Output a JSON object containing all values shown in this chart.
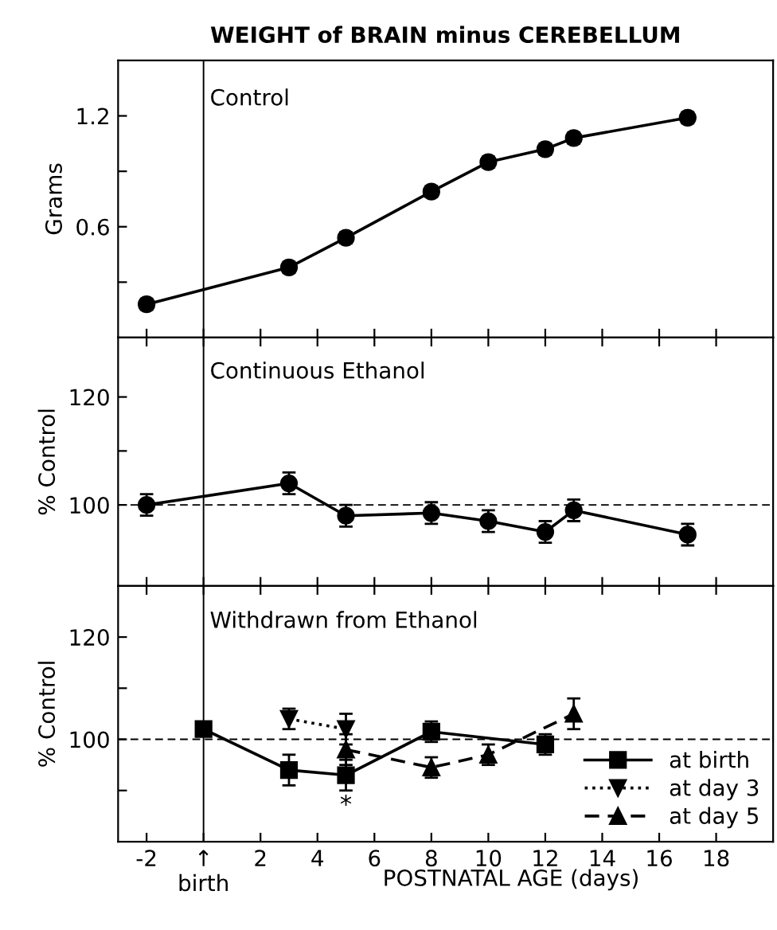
{
  "chart_data": [
    {
      "type": "line",
      "title": "WEIGHT of BRAIN minus CEREBELLUM",
      "subtitle": "Control",
      "ylabel": "Grams",
      "xlim": [
        -3,
        20
      ],
      "xticks": [
        -2,
        0,
        2,
        4,
        6,
        8,
        10,
        12,
        14,
        16,
        18
      ],
      "ylim": [
        0,
        1.5
      ],
      "yticks": [
        {
          "value": 0.3,
          "label": null
        },
        0.6,
        {
          "value": 0.9,
          "label": null
        },
        1.2
      ],
      "tick_labels": "y",
      "grid": false,
      "legend": false,
      "ref_lines": [
        {
          "axis": "x",
          "value": 0,
          "line_style": "solid"
        }
      ],
      "series": [
        {
          "x": [
            -2,
            3,
            5,
            8,
            10,
            12,
            13,
            17
          ],
          "values": [
            0.18,
            0.38,
            0.54,
            0.79,
            0.95,
            1.02,
            1.08,
            1.19
          ],
          "errors": [
            0.03,
            0.03,
            0.03,
            0.03,
            0.03,
            0.03,
            0.03,
            0.03
          ],
          "color": "#000000",
          "marker": "circle",
          "line_style": "solid"
        }
      ]
    },
    {
      "type": "line",
      "subtitle": "Continuous Ethanol",
      "ylabel": "% Control",
      "xlim": [
        -3,
        20
      ],
      "xticks": [
        -2,
        0,
        2,
        4,
        6,
        8,
        10,
        12,
        14,
        16,
        18
      ],
      "ylim": [
        85,
        131
      ],
      "yticks": [
        100,
        {
          "value": 110,
          "label": null
        },
        120
      ],
      "tick_labels": "y",
      "grid": false,
      "legend": false,
      "ref_lines": [
        {
          "axis": "x",
          "value": 0,
          "line_style": "solid"
        },
        {
          "axis": "y",
          "value": 100,
          "line_style": "dashed"
        }
      ],
      "series": [
        {
          "x": [
            -2,
            3,
            5,
            8,
            10,
            12,
            13,
            17
          ],
          "values": [
            100,
            104,
            98,
            98.5,
            97,
            95,
            99,
            94.5
          ],
          "errors": [
            2,
            2,
            2,
            2,
            2,
            2,
            2,
            2
          ],
          "color": "#000000",
          "marker": "circle",
          "line_style": "solid"
        }
      ]
    },
    {
      "type": "line",
      "subtitle": "Withdrawn from Ethanol",
      "ylabel": "% Control",
      "xlabel": "POSTNATAL AGE (days)",
      "xlim": [
        -3,
        20
      ],
      "xticks": [
        -2,
        {
          "value": 0,
          "label": "↑\nbirth"
        },
        2,
        4,
        6,
        8,
        10,
        12,
        14,
        16,
        18
      ],
      "ylim": [
        80,
        130
      ],
      "yticks": [
        {
          "value": 90,
          "label": null
        },
        100,
        {
          "value": 110,
          "label": null
        },
        120
      ],
      "grid": false,
      "legend": "bottom right",
      "ref_lines": [
        {
          "axis": "x",
          "value": 0,
          "line_style": "solid"
        },
        {
          "axis": "y",
          "value": 100,
          "line_style": "dashed"
        }
      ],
      "series": [
        {
          "name": "at birth",
          "x": [
            0,
            3,
            5,
            8,
            12
          ],
          "values": [
            102,
            94,
            93,
            101.5,
            99
          ],
          "errors": [
            null,
            3,
            3,
            2,
            2
          ],
          "value_labels": [
            null,
            null,
            "*",
            null,
            null
          ],
          "color": "#000000",
          "marker": "square",
          "line_style": "solid"
        },
        {
          "name": "at day 3",
          "x": [
            3,
            5
          ],
          "values": [
            104,
            102
          ],
          "errors": [
            2,
            3
          ],
          "color": "#000000",
          "marker": "triangle down",
          "line_style": "dotted"
        },
        {
          "name": "at day 5",
          "x": [
            5,
            8,
            10,
            13
          ],
          "values": [
            98,
            94.5,
            97,
            105
          ],
          "errors": [
            3,
            2,
            2,
            3
          ],
          "color": "#000000",
          "marker": "triangle",
          "line_style": "dashed"
        }
      ]
    }
  ]
}
